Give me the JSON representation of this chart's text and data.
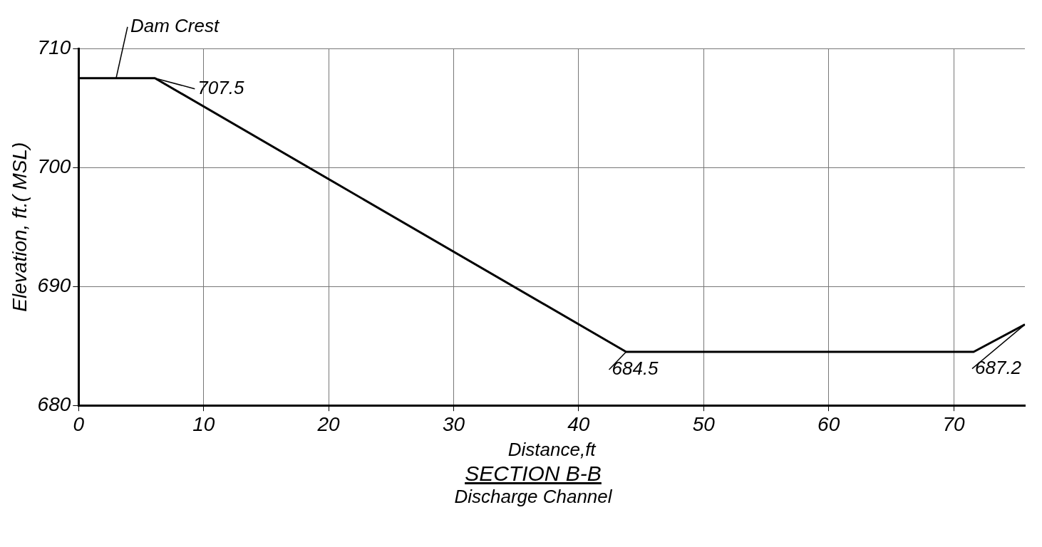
{
  "chart_data": {
    "type": "line",
    "title": "SECTION B-B",
    "subtitle": "Discharge Channel",
    "xlabel": "Distance,ft",
    "ylabel": "Elevation, ft.( MSL)",
    "x": [
      0,
      6.1,
      43.8,
      71.6,
      75.7
    ],
    "series": [
      {
        "color": "#000000",
        "values": [
          707.5,
          707.5,
          684.5,
          684.5,
          686.8
        ]
      }
    ],
    "xlim": [
      0,
      75.7
    ],
    "xticks": [
      0,
      10,
      20,
      30,
      40,
      50,
      60,
      70
    ],
    "ylim": [
      680,
      710
    ],
    "yticks": [
      680,
      690,
      700,
      710
    ],
    "grid": true,
    "legend": false,
    "marker": "none",
    "line_style": "solid",
    "annotations": [
      {
        "text": "Dam Crest",
        "x": 3,
        "y": 707.5
      },
      {
        "text": "707.5",
        "x": 6.1,
        "y": 707.5
      },
      {
        "text": "684.5",
        "x": 43.8,
        "y": 684.5
      },
      {
        "text": "687.2",
        "x": 75.7,
        "y": 686.8
      }
    ]
  }
}
